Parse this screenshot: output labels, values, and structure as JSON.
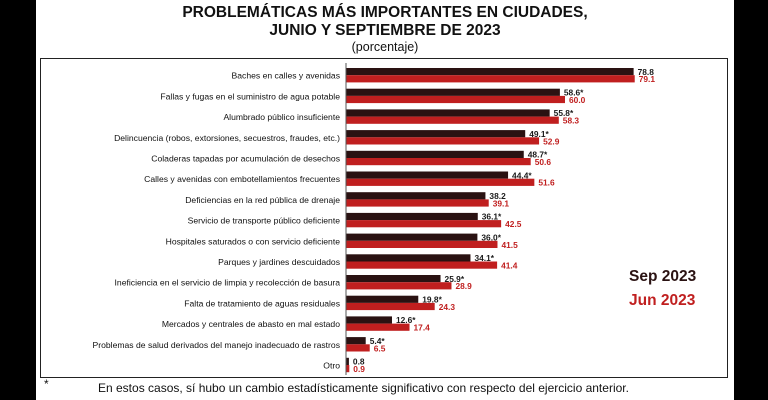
{
  "title": {
    "line1": "PROBLEMÁTICAS MÁS IMPORTANTES EN CIUDADES,",
    "line2": "JUNIO Y SEPTIEMBRE DE 2023",
    "unit": "(porcentaje)"
  },
  "legend": {
    "sep": "Sep 2023",
    "jun": "Jun 2023"
  },
  "colors": {
    "sep": "#2a1212",
    "jun": "#c01f1f",
    "sep_label": "#1a1a1a",
    "jun_label": "#c01f1f"
  },
  "footnote": {
    "mark": "*",
    "text": "En estos casos, sí hubo un cambio estadísticamente significativo con respecto del ejercicio anterior."
  },
  "chart_data": {
    "type": "bar",
    "orientation": "horizontal",
    "xlim": [
      0,
      80
    ],
    "grid": false,
    "legend_position": "right",
    "categories": [
      "Baches en calles y avenidas",
      "Fallas y fugas en el suministro de agua potable",
      "Alumbrado público insuficiente",
      "Delincuencia (robos, extorsiones, secuestros, fraudes, etc.)",
      "Coladeras tapadas por acumulación de desechos",
      "Calles y avenidas con embotellamientos frecuentes",
      "Deficiencias en la red pública de drenaje",
      "Servicio de transporte público deficiente",
      "Hospitales saturados o con servicio deficiente",
      "Parques y jardines descuidados",
      "Ineficiencia en el servicio de limpia y recolección de basura",
      "Falta de tratamiento de aguas residuales",
      "Mercados y centrales de abasto en mal estado",
      "Problemas de salud derivados del manejo inadecuado de rastros",
      "Otro"
    ],
    "series": [
      {
        "name": "Sep 2023",
        "values": [
          78.8,
          58.6,
          55.8,
          49.1,
          48.7,
          44.4,
          38.2,
          36.1,
          36.0,
          34.1,
          25.9,
          19.8,
          12.6,
          5.4,
          0.8
        ],
        "labels": [
          "78.8",
          "58.6*",
          "55.8*",
          "49.1*",
          "48.7*",
          "44.4*",
          "38.2",
          "36.1*",
          "36.0*",
          "34.1*",
          "25.9*",
          "19.8*",
          "12.6*",
          "5.4*",
          "0.8"
        ]
      },
      {
        "name": "Jun 2023",
        "values": [
          79.1,
          60.0,
          58.3,
          52.9,
          50.6,
          51.6,
          39.1,
          42.5,
          41.5,
          41.4,
          28.9,
          24.3,
          17.4,
          6.5,
          0.9
        ],
        "labels": [
          "79.1",
          "60.0",
          "58.3",
          "52.9",
          "50.6",
          "51.6",
          "39.1",
          "42.5",
          "41.5",
          "41.4",
          "28.9",
          "24.3",
          "17.4",
          "6.5",
          "0.9"
        ]
      }
    ]
  }
}
